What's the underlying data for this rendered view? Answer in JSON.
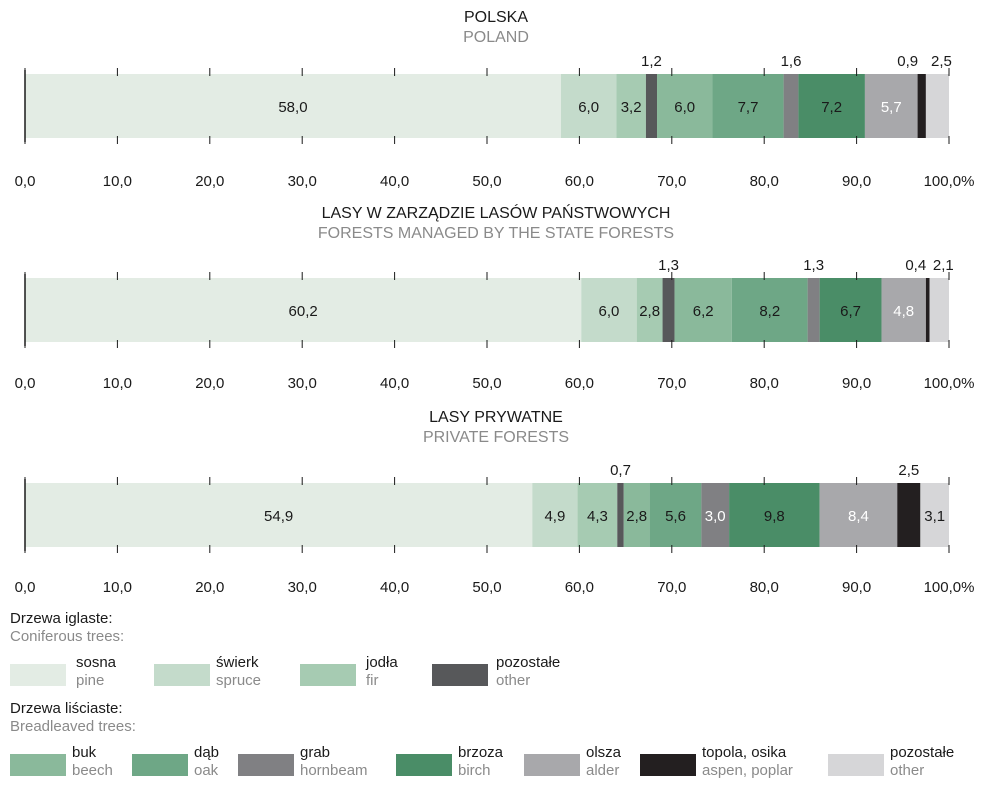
{
  "chart_data": [
    {
      "type": "bar",
      "orientation": "horizontal",
      "stacked": true,
      "title": "POLSKA",
      "subtitle": "POLAND",
      "xlim": [
        0,
        100
      ],
      "xticks": [
        "0,0",
        "10,0",
        "20,0",
        "30,0",
        "40,0",
        "50,0",
        "60,0",
        "70,0",
        "80,0",
        "90,0",
        "100,0%"
      ],
      "segments": [
        {
          "key": "sosna",
          "value": 58.0,
          "label": "58,0"
        },
        {
          "key": "swierk",
          "value": 6.0,
          "label": "6,0"
        },
        {
          "key": "jodla",
          "value": 3.2,
          "label": "3,2"
        },
        {
          "key": "pozostale_iglaste",
          "value": 1.2,
          "label": "1,2"
        },
        {
          "key": "buk",
          "value": 6.0,
          "label": "6,0"
        },
        {
          "key": "dab",
          "value": 7.7,
          "label": "7,7"
        },
        {
          "key": "grab",
          "value": 1.6,
          "label": "1,6"
        },
        {
          "key": "brzoza",
          "value": 7.2,
          "label": "7,2"
        },
        {
          "key": "olsza",
          "value": 5.7,
          "label": "5,7"
        },
        {
          "key": "topola",
          "value": 0.9,
          "label": "0,9"
        },
        {
          "key": "pozostale_lisciaste",
          "value": 2.5,
          "label": "2,5"
        }
      ]
    },
    {
      "type": "bar",
      "orientation": "horizontal",
      "stacked": true,
      "title": "LASY W ZARZĄDZIE LASÓW PAŃSTWOWYCH",
      "subtitle": "FORESTS MANAGED BY THE STATE FORESTS",
      "xlim": [
        0,
        100
      ],
      "xticks": [
        "0,0",
        "10,0",
        "20,0",
        "30,0",
        "40,0",
        "50,0",
        "60,0",
        "70,0",
        "80,0",
        "90,0",
        "100,0%"
      ],
      "segments": [
        {
          "key": "sosna",
          "value": 60.2,
          "label": "60,2"
        },
        {
          "key": "swierk",
          "value": 6.0,
          "label": "6,0"
        },
        {
          "key": "jodla",
          "value": 2.8,
          "label": "2,8"
        },
        {
          "key": "pozostale_iglaste",
          "value": 1.3,
          "label": "1,3"
        },
        {
          "key": "buk",
          "value": 6.2,
          "label": "6,2"
        },
        {
          "key": "dab",
          "value": 8.2,
          "label": "8,2"
        },
        {
          "key": "grab",
          "value": 1.3,
          "label": "1,3"
        },
        {
          "key": "brzoza",
          "value": 6.7,
          "label": "6,7"
        },
        {
          "key": "olsza",
          "value": 4.8,
          "label": "4,8"
        },
        {
          "key": "topola",
          "value": 0.4,
          "label": "0,4"
        },
        {
          "key": "pozostale_lisciaste",
          "value": 2.1,
          "label": "2,1"
        }
      ]
    },
    {
      "type": "bar",
      "orientation": "horizontal",
      "stacked": true,
      "title": "LASY PRYWATNE",
      "subtitle": "PRIVATE FORESTS",
      "xlim": [
        0,
        100
      ],
      "xticks": [
        "0,0",
        "10,0",
        "20,0",
        "30,0",
        "40,0",
        "50,0",
        "60,0",
        "70,0",
        "80,0",
        "90,0",
        "100,0%"
      ],
      "segments": [
        {
          "key": "sosna",
          "value": 54.9,
          "label": "54,9"
        },
        {
          "key": "swierk",
          "value": 4.9,
          "label": "4,9"
        },
        {
          "key": "jodla",
          "value": 4.3,
          "label": "4,3"
        },
        {
          "key": "pozostale_iglaste",
          "value": 0.7,
          "label": "0,7"
        },
        {
          "key": "buk",
          "value": 2.8,
          "label": "2,8"
        },
        {
          "key": "dab",
          "value": 5.6,
          "label": "5,6"
        },
        {
          "key": "grab",
          "value": 3.0,
          "label": "3,0"
        },
        {
          "key": "brzoza",
          "value": 9.8,
          "label": "9,8"
        },
        {
          "key": "olsza",
          "value": 8.4,
          "label": "8,4"
        },
        {
          "key": "topola",
          "value": 2.5,
          "label": "2,5"
        },
        {
          "key": "pozostale_lisciaste",
          "value": 3.1,
          "label": "3,1"
        }
      ]
    }
  ],
  "categories": {
    "sosna": {
      "color": "#e3ece4",
      "text": "#1a1a1a"
    },
    "swierk": {
      "color": "#c4dbcb",
      "text": "#1a1a1a"
    },
    "jodla": {
      "color": "#a6cbb2",
      "text": "#1a1a1a"
    },
    "pozostale_iglaste": {
      "color": "#57585a",
      "text": "#ffffff"
    },
    "buk": {
      "color": "#8ab99b",
      "text": "#1a1a1a"
    },
    "dab": {
      "color": "#6ea786",
      "text": "#1a1a1a"
    },
    "grab": {
      "color": "#808083",
      "text": "#ffffff"
    },
    "brzoza": {
      "color": "#4a8d67",
      "text": "#1a1a1a"
    },
    "olsza": {
      "color": "#a8a8ab",
      "text": "#ffffff"
    },
    "topola": {
      "color": "#231f20",
      "text": "#ffffff"
    },
    "pozostale_lisciaste": {
      "color": "#d6d6d8",
      "text": "#1a1a1a"
    }
  },
  "legend": {
    "coniferous": {
      "heading_pl": "Drzewa iglaste:",
      "heading_en": "Coniferous trees:",
      "items": [
        {
          "key": "sosna",
          "pl": "sosna",
          "en": "pine"
        },
        {
          "key": "swierk",
          "pl": "świerk",
          "en": "spruce"
        },
        {
          "key": "jodla",
          "pl": "jodła",
          "en": "fir"
        },
        {
          "key": "pozostale_iglaste",
          "pl": "pozostałe",
          "en": "other"
        }
      ]
    },
    "broadleaved": {
      "heading_pl": "Drzewa liściaste:",
      "heading_en": "Breadleaved trees:",
      "items": [
        {
          "key": "buk",
          "pl": "buk",
          "en": "beech"
        },
        {
          "key": "dab",
          "pl": "dąb",
          "en": "oak"
        },
        {
          "key": "grab",
          "pl": "grab",
          "en": "hornbeam"
        },
        {
          "key": "brzoza",
          "pl": "brzoza",
          "en": "birch"
        },
        {
          "key": "olsza",
          "pl": "olsza",
          "en": "alder"
        },
        {
          "key": "topola",
          "pl": "topola, osika",
          "en": "aspen, poplar"
        },
        {
          "key": "pozostale_lisciaste",
          "pl": "pozostałe",
          "en": "other"
        }
      ]
    }
  }
}
